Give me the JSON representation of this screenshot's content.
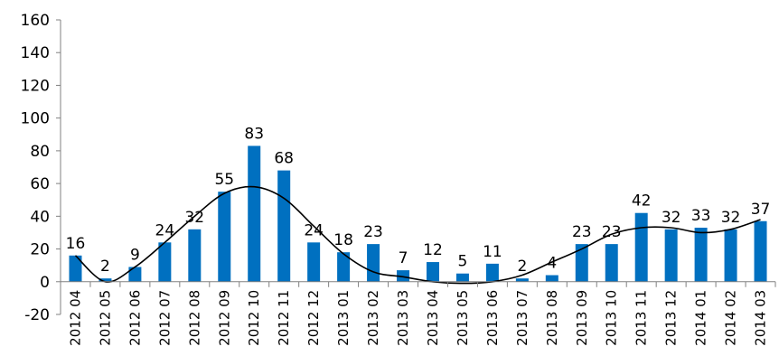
{
  "chart_data": {
    "type": "bar",
    "categories": [
      "2012 04",
      "2012 05",
      "2012 06",
      "2012 07",
      "2012 08",
      "2012 09",
      "2012 10",
      "2012 11",
      "2012 12",
      "2013 01",
      "2013 02",
      "2013 03",
      "2013 04",
      "2013 05",
      "2013 06",
      "2013 07",
      "2013 08",
      "2013 09",
      "2013 10",
      "2013 11",
      "2013 12",
      "2014 01",
      "2014 02",
      "2014 03"
    ],
    "values": [
      16,
      2,
      9,
      24,
      32,
      55,
      83,
      68,
      24,
      18,
      23,
      7,
      12,
      5,
      11,
      2,
      4,
      23,
      23,
      42,
      32,
      33,
      32,
      37
    ],
    "trendline": [
      16,
      0,
      9,
      24,
      40,
      54,
      58,
      51,
      34,
      17,
      6,
      3,
      0,
      -1,
      0,
      4,
      12,
      20,
      29,
      33,
      33,
      30,
      32,
      38
    ],
    "ylim": [
      -20,
      160
    ],
    "yticks": [
      -20,
      0,
      20,
      40,
      60,
      80,
      100,
      120,
      140,
      160
    ],
    "title": "",
    "xlabel": "",
    "ylabel": "",
    "grid": false,
    "legend": "none",
    "colors": {
      "bar": "#0070C0",
      "trendline": "#000000",
      "axis": "#808080"
    }
  }
}
